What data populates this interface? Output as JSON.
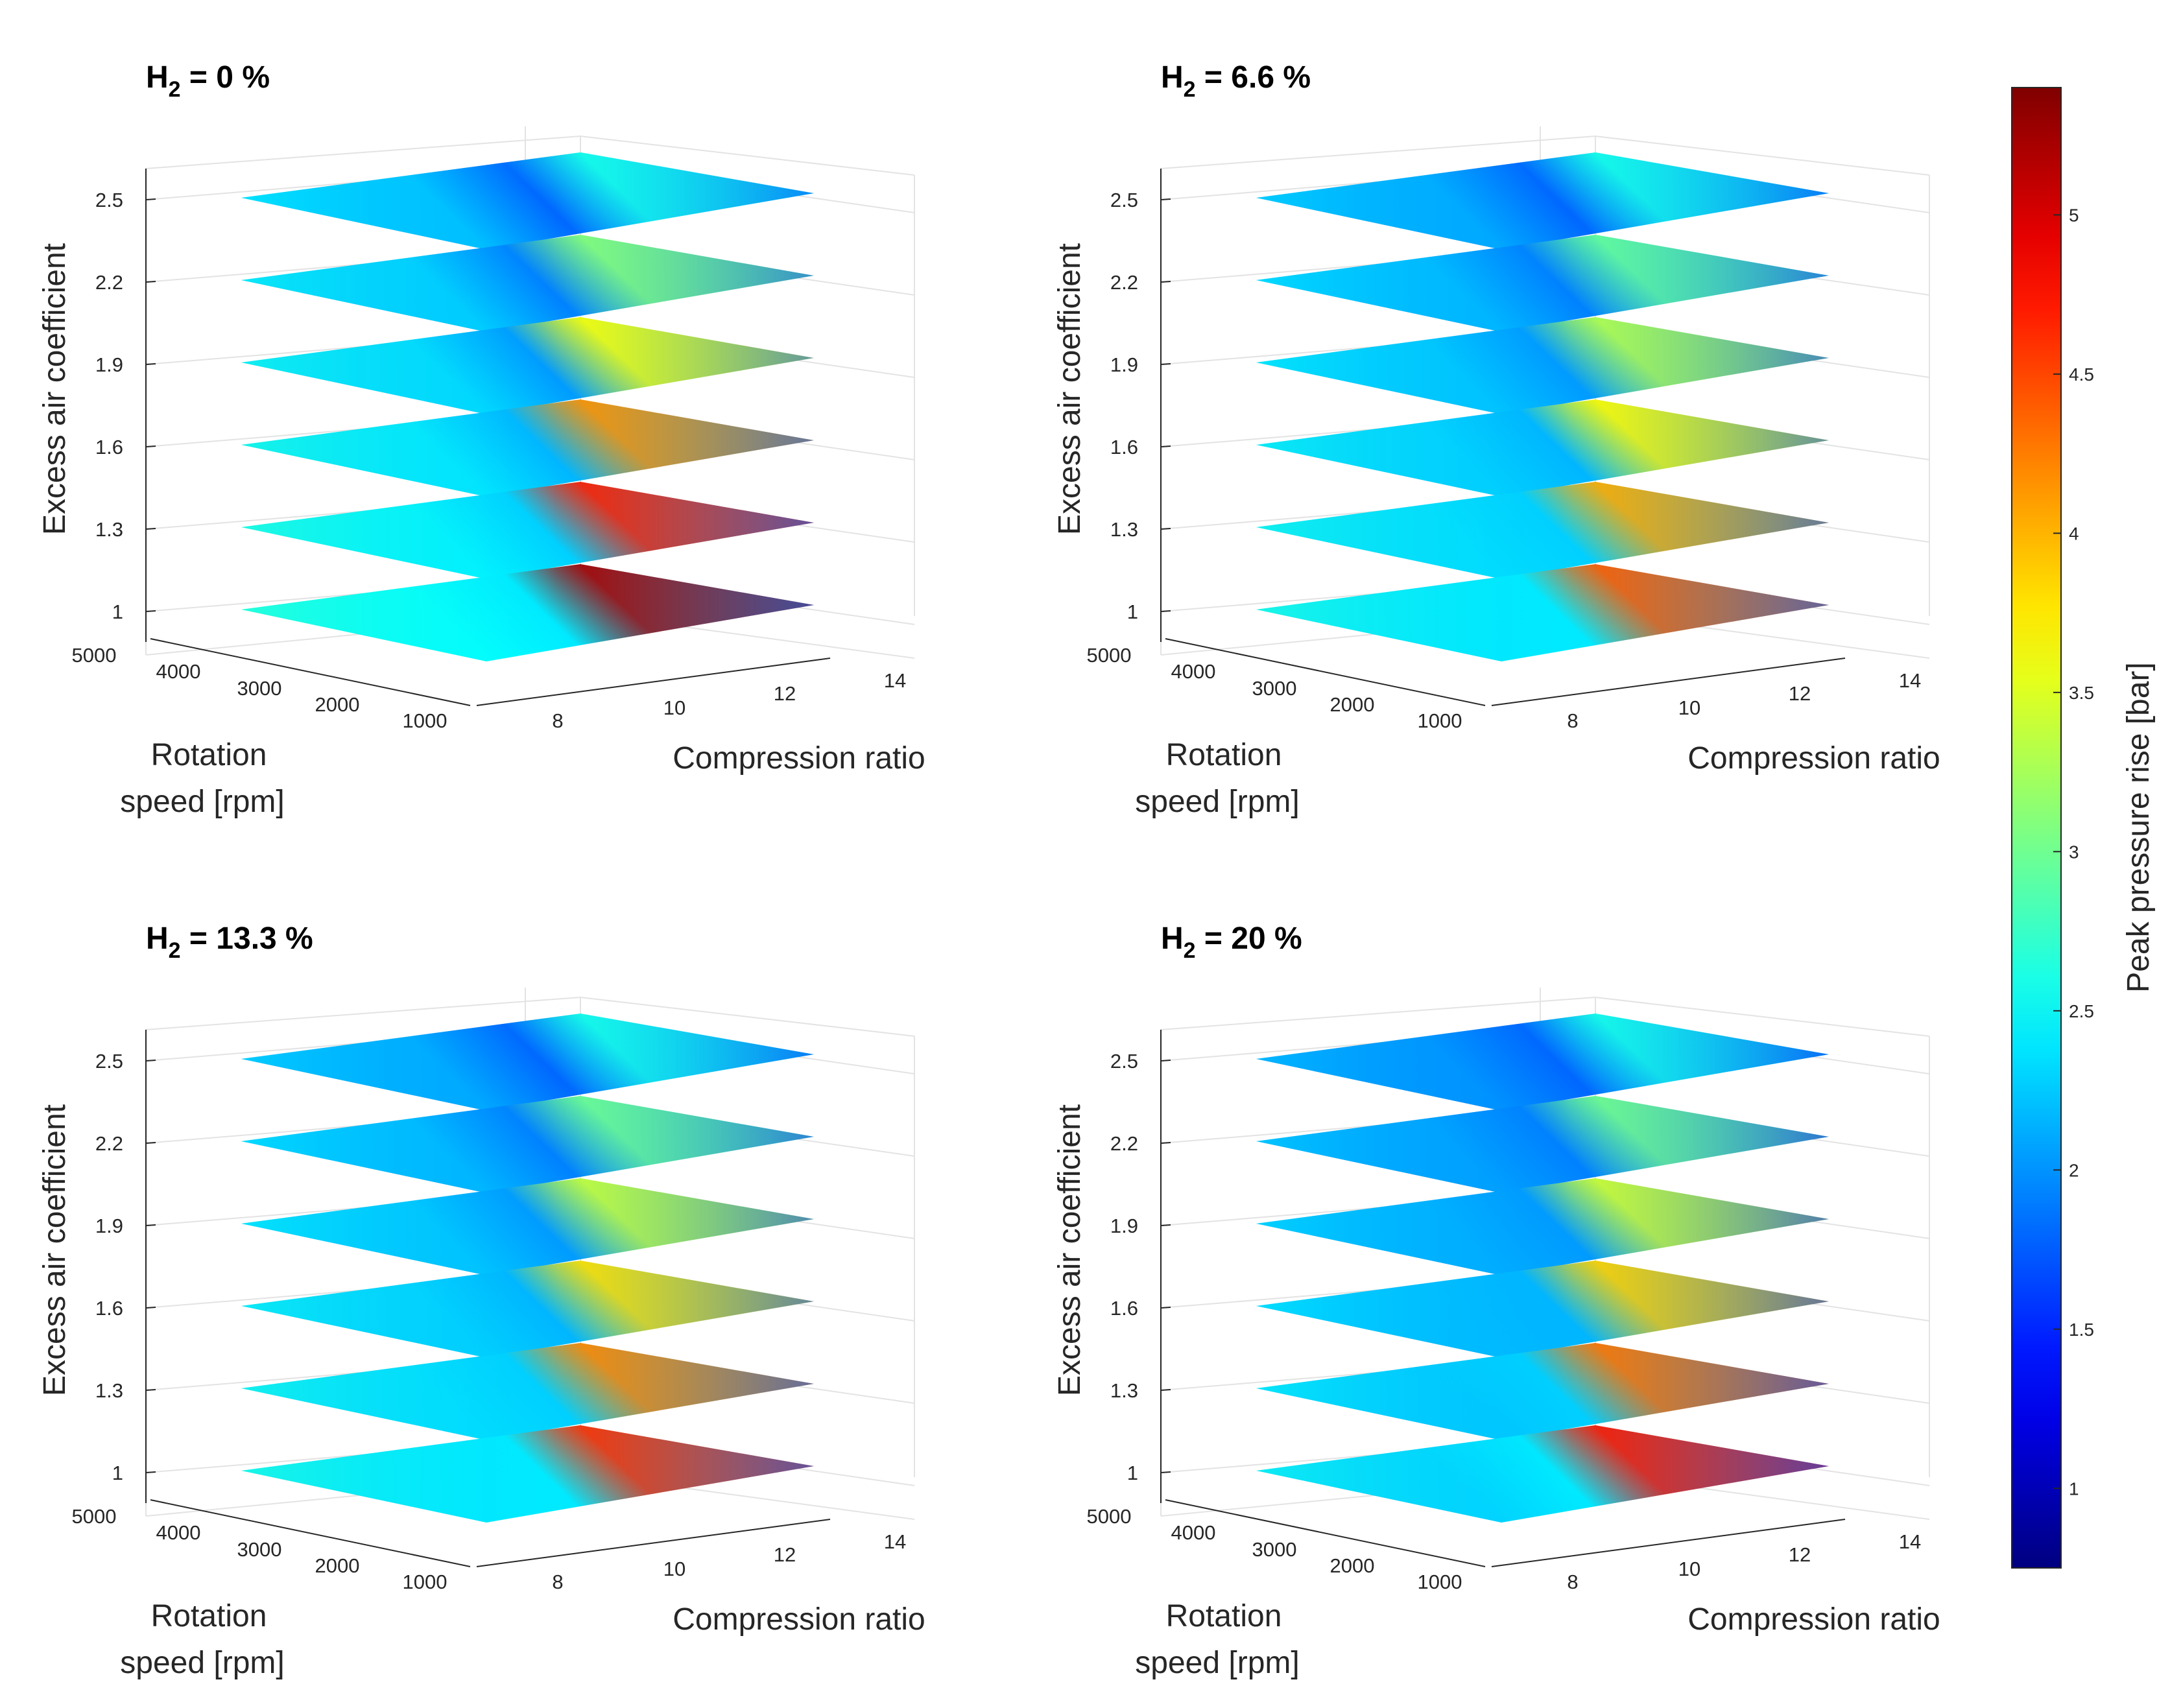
{
  "chart_data": {
    "type": "surface-slices",
    "panels": [
      {
        "title": {
          "prefix": "H",
          "subscript": "2",
          "suffix": " = 0 %"
        },
        "peak_value": 5.2,
        "min_value": 1.6
      },
      {
        "title": {
          "prefix": "H",
          "subscript": "2",
          "suffix": " = 6.6 %"
        },
        "peak_value": 4.4,
        "min_value": 1.5
      },
      {
        "title": {
          "prefix": "H",
          "subscript": "2",
          "suffix": " = 13.3 %"
        },
        "peak_value": 4.6,
        "min_value": 1.5
      },
      {
        "title": {
          "prefix": "H",
          "subscript": "2",
          "suffix": " = 20 %"
        },
        "peak_value": 4.7,
        "min_value": 1.4
      }
    ],
    "axes": {
      "z": {
        "label": "Excess air coefficient",
        "ticks": [
          "1",
          "1.3",
          "1.6",
          "1.9",
          "2.2",
          "2.5"
        ],
        "values": [
          1,
          1.3,
          1.6,
          1.9,
          2.2,
          2.5
        ]
      },
      "x": {
        "label": "Compression ratio",
        "ticks": [
          "8",
          "10",
          "12",
          "14"
        ],
        "range": [
          7,
          15
        ]
      },
      "y": {
        "label_line1": "Rotation",
        "label_line2": "speed [rpm]",
        "ticks": [
          "1000",
          "2000",
          "3000",
          "4000",
          "5000"
        ],
        "range": [
          1000,
          5000
        ]
      }
    },
    "colorbar": {
      "label": "Peak pressure rise [bar]",
      "ticks": [
        "1",
        "1.5",
        "2",
        "2.5",
        "3",
        "3.5",
        "4",
        "4.5",
        "5"
      ],
      "tick_values": [
        1,
        1.5,
        2,
        2.5,
        3,
        3.5,
        4,
        4.5,
        5
      ],
      "range": [
        0.75,
        5.4
      ],
      "colormap": "jet"
    },
    "grid": true
  }
}
